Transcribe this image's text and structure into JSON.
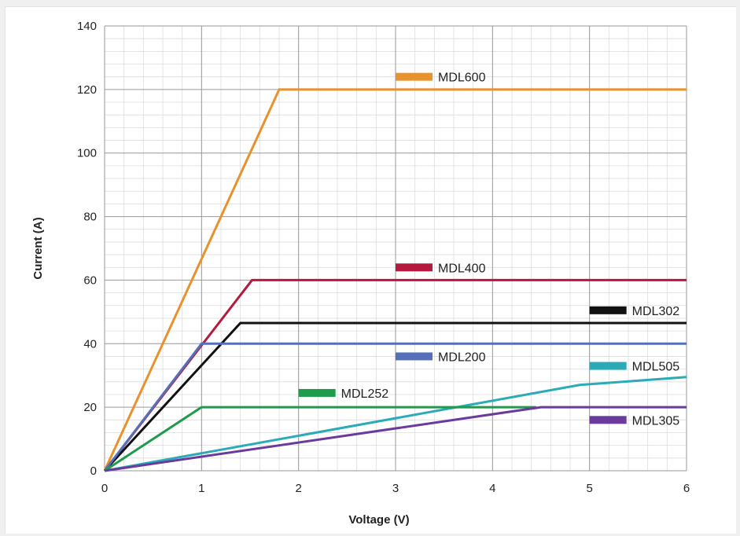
{
  "chart_data": {
    "type": "line",
    "title": "",
    "xlabel": "Voltage (V)",
    "ylabel": "Current (A)",
    "xlim": [
      0,
      6
    ],
    "ylim": [
      0,
      140
    ],
    "xticks": [
      0,
      1,
      2,
      3,
      4,
      5,
      6
    ],
    "yticks": [
      0,
      20,
      40,
      60,
      80,
      100,
      120,
      140
    ],
    "grid": true,
    "legend_placement": "inline labels next to lines",
    "series": [
      {
        "name": "MDL600",
        "color": "#e8912d",
        "points": [
          [
            0,
            0
          ],
          [
            1.8,
            120
          ],
          [
            6,
            120
          ]
        ],
        "label_at": [
          3,
          124
        ]
      },
      {
        "name": "MDL400",
        "color": "#b5193d",
        "points": [
          [
            0,
            0
          ],
          [
            1.52,
            60
          ],
          [
            6,
            60
          ]
        ],
        "label_at": [
          3,
          64
        ]
      },
      {
        "name": "MDL302",
        "color": "#111111",
        "points": [
          [
            0,
            0
          ],
          [
            1.4,
            46.5
          ],
          [
            6,
            46.5
          ]
        ],
        "label_at": [
          5,
          50.5
        ]
      },
      {
        "name": "MDL200",
        "color": "#5570b8",
        "points": [
          [
            0,
            0
          ],
          [
            1,
            40
          ],
          [
            6,
            40
          ]
        ],
        "label_at": [
          3,
          36
        ]
      },
      {
        "name": "MDL505",
        "color": "#2aabb7",
        "points": [
          [
            0,
            0
          ],
          [
            4.9,
            27
          ],
          [
            6,
            29.5
          ]
        ],
        "label_at": [
          5,
          33
        ]
      },
      {
        "name": "MDL252",
        "color": "#1e9b4b",
        "points": [
          [
            0,
            0
          ],
          [
            1,
            20
          ],
          [
            4.45,
            20
          ]
        ],
        "label_at": [
          2,
          24.5
        ]
      },
      {
        "name": "MDL305",
        "color": "#6a3a9c",
        "points": [
          [
            0,
            0
          ],
          [
            4.5,
            20
          ],
          [
            6,
            20
          ]
        ],
        "label_at": [
          5,
          16
        ]
      }
    ]
  }
}
